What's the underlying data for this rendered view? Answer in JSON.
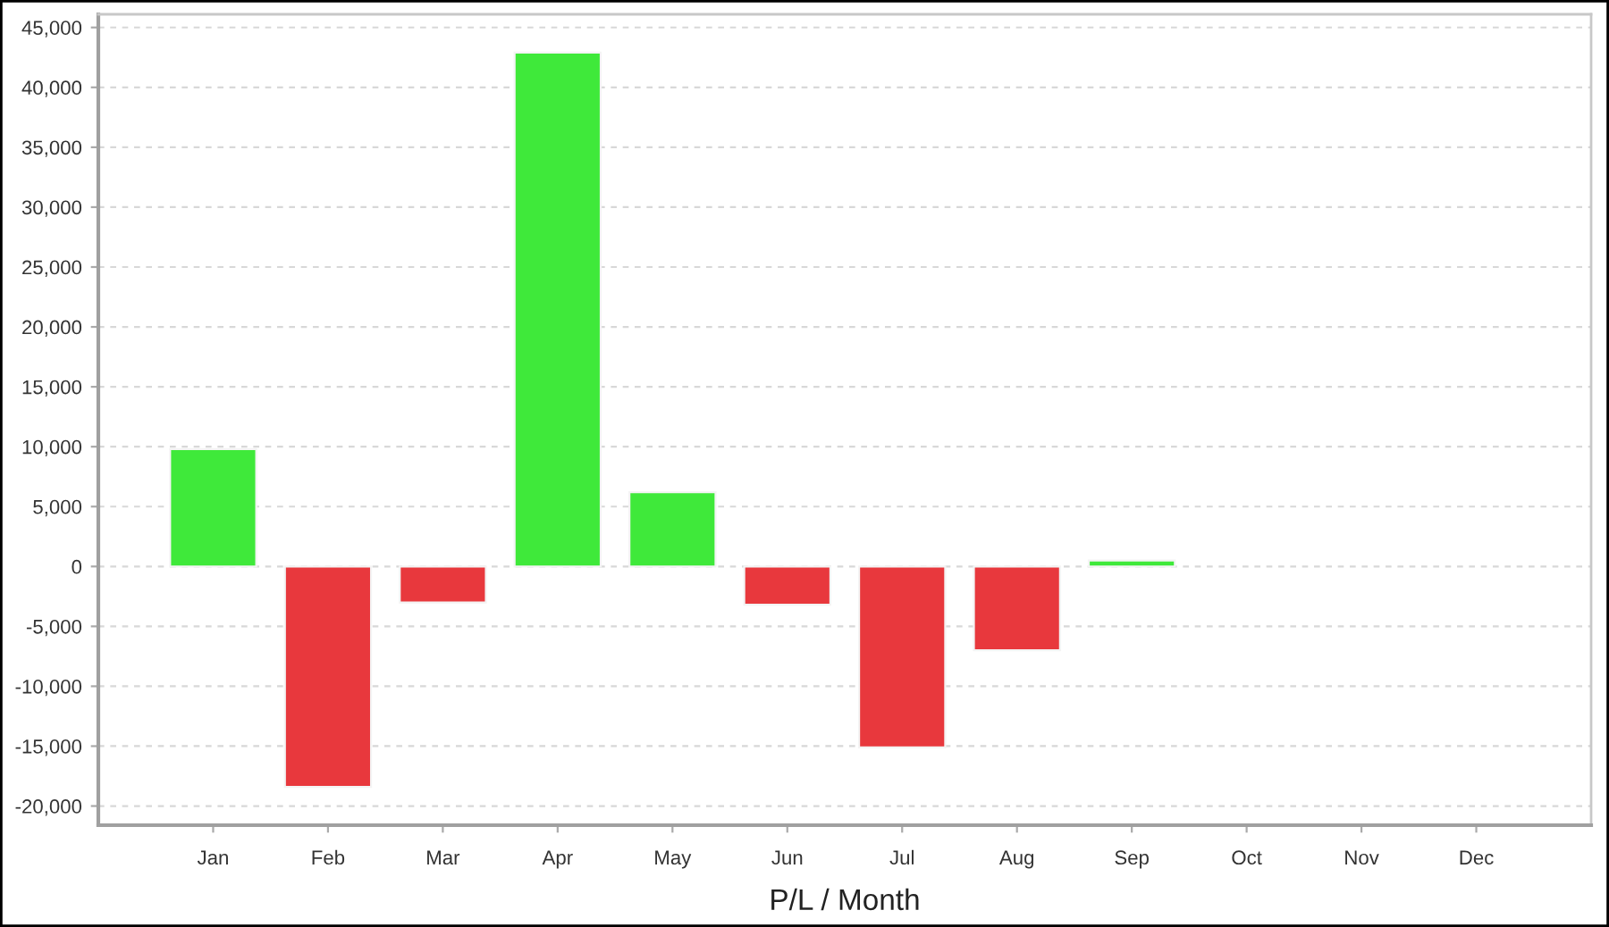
{
  "chart_data": {
    "type": "bar",
    "xlabel": "P/L / Month",
    "categories": [
      "Jan",
      "Feb",
      "Mar",
      "Apr",
      "May",
      "Jun",
      "Jul",
      "Aug",
      "Sep",
      "Oct",
      "Nov",
      "Dec"
    ],
    "values": [
      9800,
      -18400,
      -3000,
      42900,
      6200,
      -3200,
      -15100,
      -7000,
      500,
      null,
      null,
      null
    ],
    "colors": [
      "#3fe93a",
      "#e8383d",
      "#e8383d",
      "#3fe93a",
      "#3fe93a",
      "#e8383d",
      "#e8383d",
      "#e8383d",
      "#3fe93a",
      null,
      null,
      null
    ],
    "ylim": [
      -21600,
      46100
    ],
    "yticks": [
      {
        "value": -20000,
        "label": "-20,000"
      },
      {
        "value": -15000,
        "label": "-15,000"
      },
      {
        "value": -10000,
        "label": "-10,000"
      },
      {
        "value": -5000,
        "label": "-5,000"
      },
      0,
      {
        "value": 5000,
        "label": "5,000"
      },
      {
        "value": 10000,
        "label": "10,000"
      },
      {
        "value": 15000,
        "label": "15,000"
      },
      {
        "value": 20000,
        "label": "20,000"
      },
      {
        "value": 25000,
        "label": "25,000"
      },
      {
        "value": 30000,
        "label": "30,000"
      },
      {
        "value": 35000,
        "label": "35,000"
      },
      {
        "value": 40000,
        "label": "40,000"
      },
      {
        "value": 45000,
        "label": "45,000"
      }
    ],
    "grid": "y",
    "legend": false
  }
}
